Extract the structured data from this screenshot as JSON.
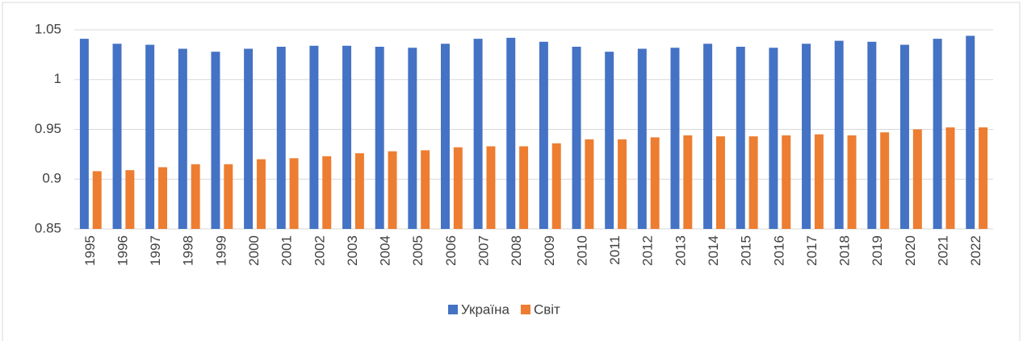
{
  "chart_data": {
    "type": "bar",
    "categories": [
      "1995",
      "1996",
      "1997",
      "1998",
      "1999",
      "2000",
      "2001",
      "2002",
      "2003",
      "2004",
      "2005",
      "2006",
      "2007",
      "2008",
      "2009",
      "2010",
      "2011",
      "2012",
      "2013",
      "2014",
      "2015",
      "2016",
      "2017",
      "2018",
      "2019",
      "2020",
      "2021",
      "2022"
    ],
    "series": [
      {
        "name": "Україна",
        "color": "#4472c4",
        "values": [
          1.041,
          1.036,
          1.035,
          1.031,
          1.028,
          1.031,
          1.033,
          1.034,
          1.034,
          1.033,
          1.032,
          1.036,
          1.041,
          1.042,
          1.038,
          1.033,
          1.028,
          1.031,
          1.032,
          1.036,
          1.033,
          1.032,
          1.036,
          1.039,
          1.038,
          1.035,
          1.041,
          1.044
        ]
      },
      {
        "name": "Світ",
        "color": "#ed7d31",
        "values": [
          0.908,
          0.909,
          0.912,
          0.915,
          0.915,
          0.92,
          0.921,
          0.923,
          0.926,
          0.928,
          0.929,
          0.932,
          0.933,
          0.933,
          0.936,
          0.94,
          0.94,
          0.942,
          0.944,
          0.943,
          0.943,
          0.944,
          0.945,
          0.944,
          0.947,
          0.95,
          0.952,
          0.952
        ]
      }
    ],
    "ylim": [
      0.85,
      1.05
    ],
    "yticks": [
      0.85,
      0.9,
      0.95,
      1,
      1.05
    ],
    "grid": true,
    "legend": "bottom"
  }
}
